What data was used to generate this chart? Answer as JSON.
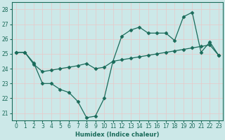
{
  "xlabel": "Humidex (Indice chaleur)",
  "bg_color": "#cce8e8",
  "line_color": "#1a6b5a",
  "grid_color": "#e8c8c8",
  "xlim": [
    -0.5,
    23.5
  ],
  "ylim": [
    20.5,
    28.5
  ],
  "yticks": [
    21,
    22,
    23,
    24,
    25,
    26,
    27,
    28
  ],
  "xticks": [
    0,
    1,
    2,
    3,
    4,
    5,
    6,
    7,
    8,
    9,
    10,
    11,
    12,
    13,
    14,
    15,
    16,
    17,
    18,
    19,
    20,
    21,
    22,
    23
  ],
  "line1_x": [
    0,
    1,
    2,
    3,
    4,
    5,
    6,
    7,
    8,
    9,
    10,
    11,
    12,
    13,
    14,
    15,
    16,
    17,
    18,
    19,
    20,
    21,
    22,
    23
  ],
  "line1_y": [
    25.1,
    25.1,
    24.4,
    23.0,
    23.0,
    22.6,
    22.4,
    21.8,
    20.7,
    20.8,
    22.0,
    24.5,
    26.2,
    26.6,
    26.8,
    26.4,
    26.4,
    26.4,
    25.9,
    27.5,
    27.8,
    25.1,
    25.8,
    24.9
  ],
  "line2_x": [
    0,
    1,
    2,
    3,
    4,
    5,
    6,
    7,
    8,
    9,
    10,
    11,
    12,
    13,
    14,
    15,
    16,
    17,
    18,
    19,
    20,
    21,
    22,
    23
  ],
  "line2_y": [
    25.1,
    25.1,
    24.3,
    23.8,
    23.9,
    24.0,
    24.1,
    24.2,
    24.35,
    24.0,
    24.1,
    24.5,
    24.6,
    24.7,
    24.8,
    24.9,
    25.0,
    25.1,
    25.2,
    25.3,
    25.4,
    25.5,
    25.6,
    24.9
  ],
  "markersize": 2.5,
  "linewidth": 0.9,
  "axis_fontsize": 6,
  "tick_fontsize": 5.5
}
